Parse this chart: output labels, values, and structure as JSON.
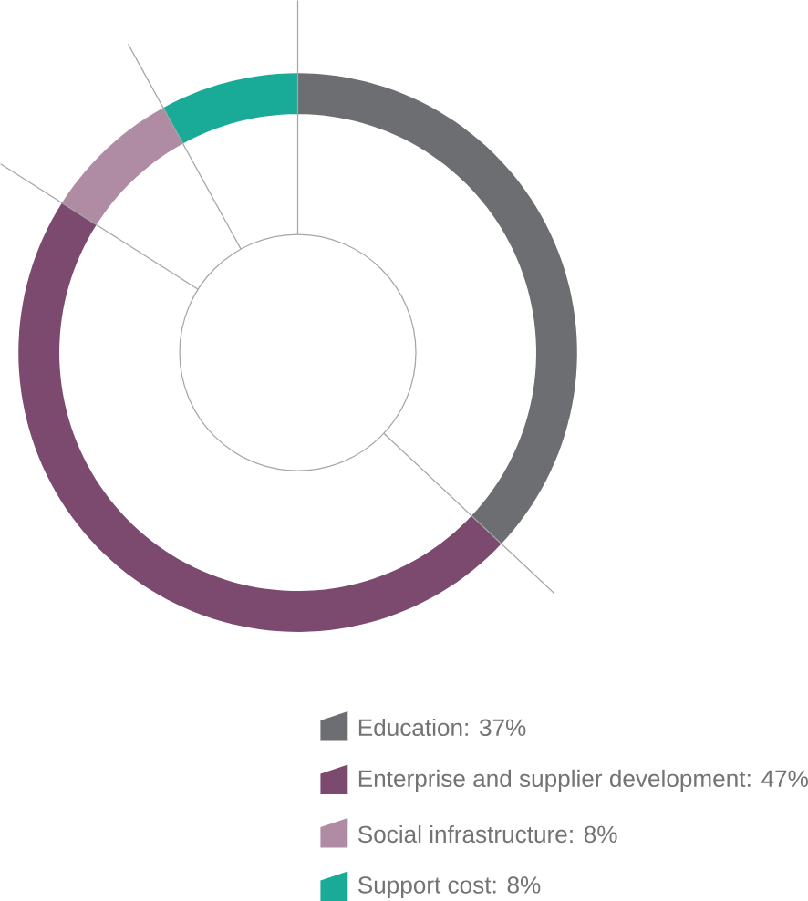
{
  "chart_data": {
    "type": "donut",
    "categories": [
      "Education",
      "Enterprise and supplier development",
      "Social infrastructure",
      "Support cost"
    ],
    "values": [
      37,
      47,
      8,
      8
    ],
    "colors": [
      "#6d6e71",
      "#7b4a6e",
      "#b08ba4",
      "#1aaa98"
    ],
    "value_labels": [
      ": 37%",
      ": 47%",
      ": 8%",
      ": 8%"
    ],
    "legend": "bottom"
  }
}
